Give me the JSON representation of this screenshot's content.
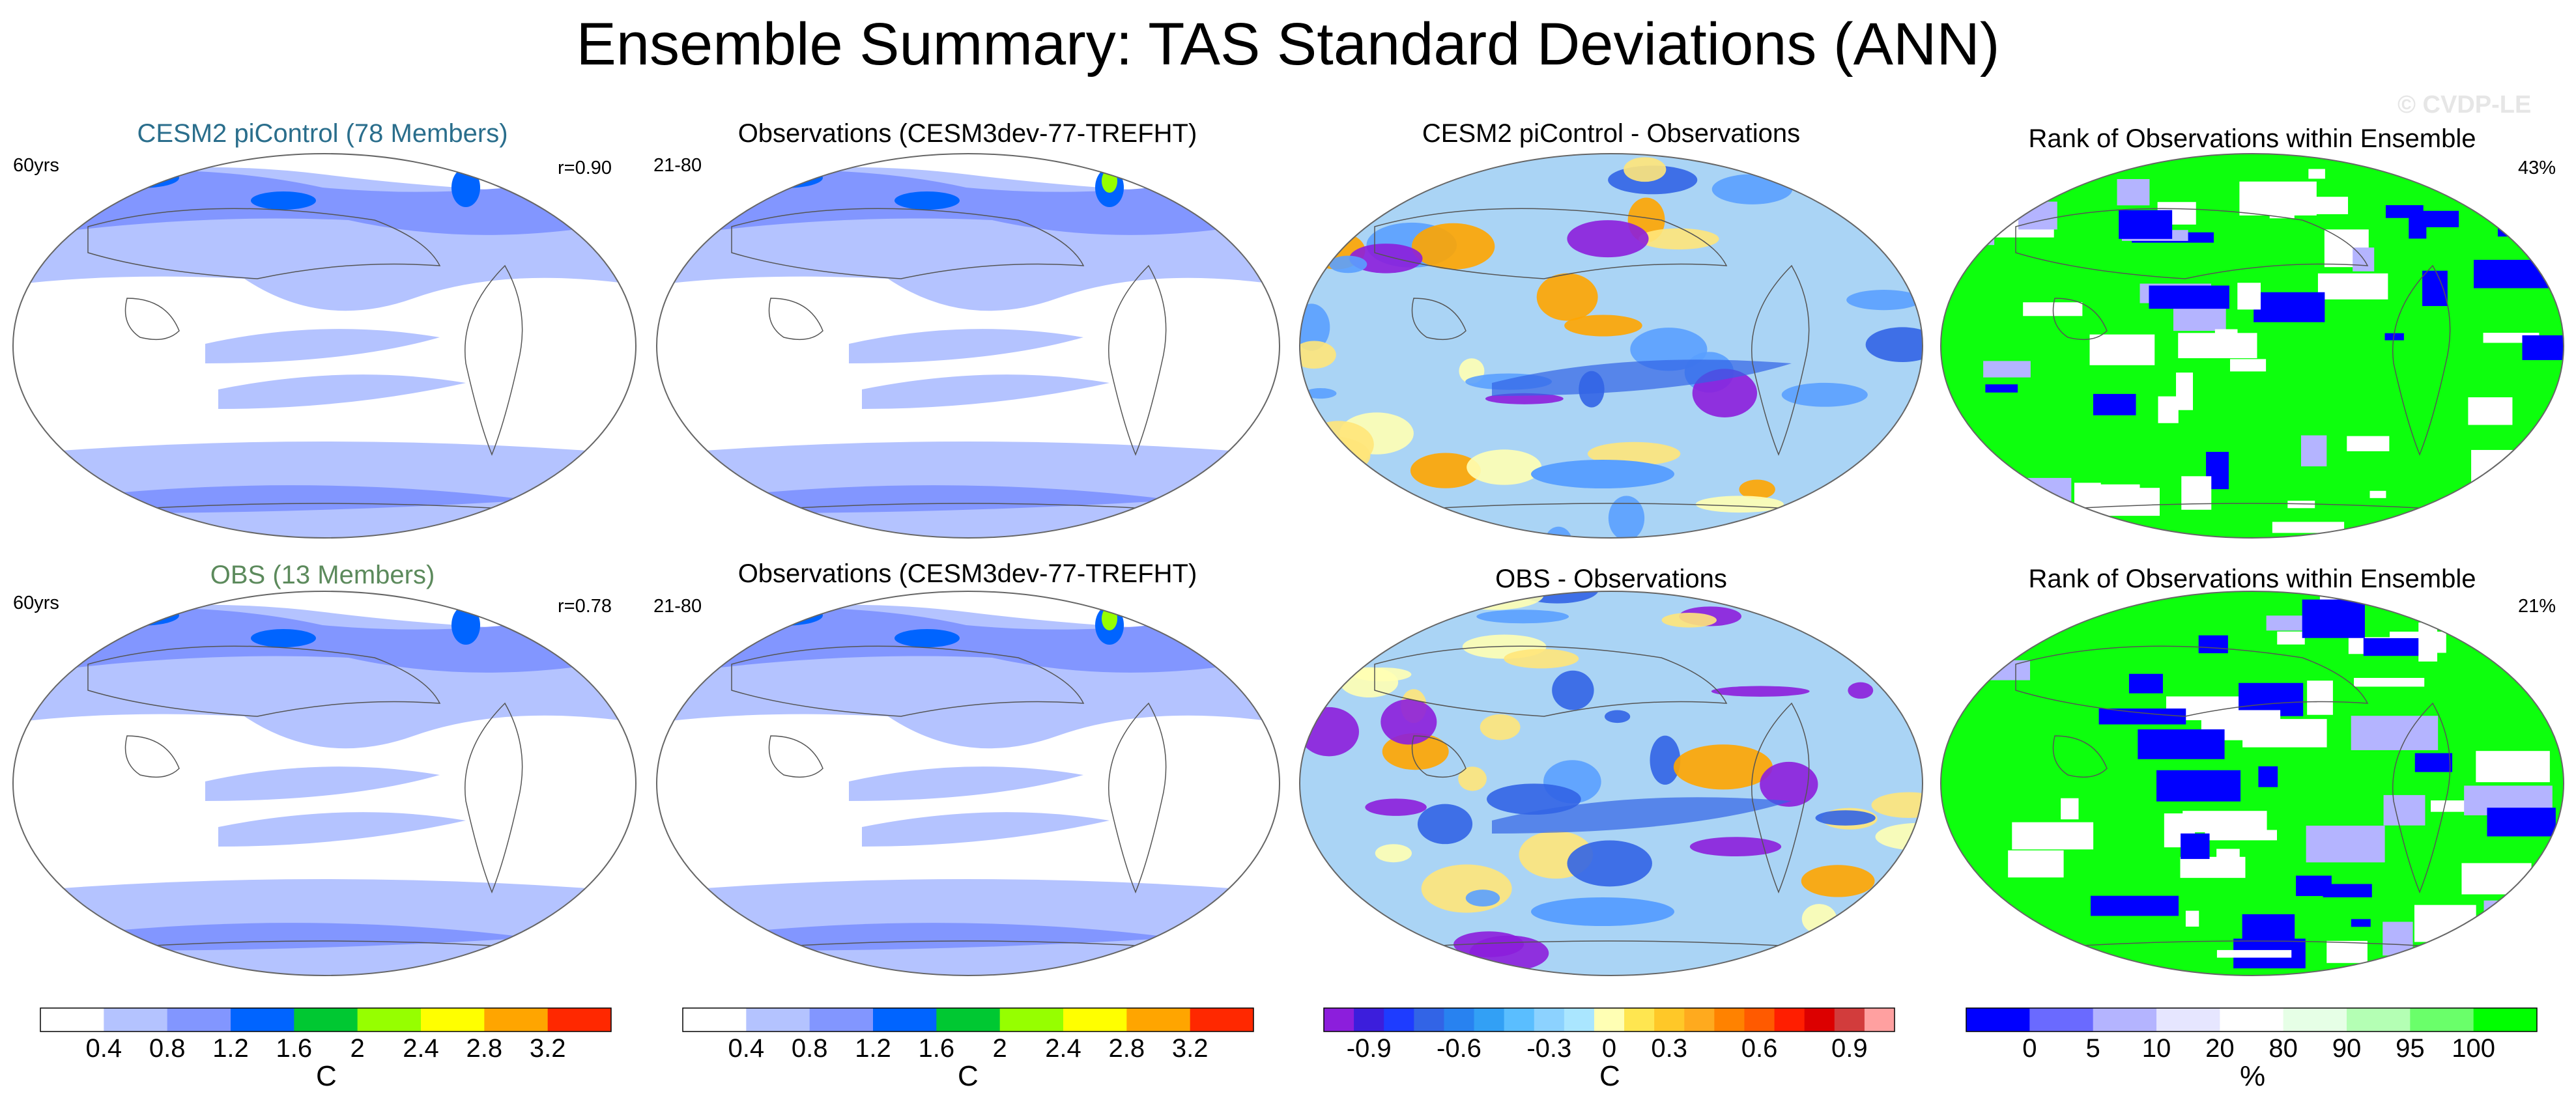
{
  "figure": {
    "title": "Ensemble Summary: TAS Standard Deviations (ANN)",
    "watermark": "© CVDP-LE"
  },
  "rows": [
    {
      "panels": [
        {
          "title": "CESM2 piControl (78 Members)",
          "left_label": "60yrs",
          "right_label": "r=0.90",
          "title_color": "#2a6e8c"
        },
        {
          "title": "Observations (CESM3dev-77-TREFHT)",
          "left_label": "21-80",
          "right_label": ""
        },
        {
          "title": "CESM2 piControl - Observations",
          "left_label": "",
          "right_label": ""
        },
        {
          "title": "Rank of Observations within Ensemble",
          "left_label": "",
          "right_label": "43%"
        }
      ]
    },
    {
      "panels": [
        {
          "title": "OBS (13 Members)",
          "left_label": "60yrs",
          "right_label": "r=0.78",
          "title_color": "#5c8a5c"
        },
        {
          "title": "Observations (CESM3dev-77-TREFHT)",
          "left_label": "21-80",
          "right_label": ""
        },
        {
          "title": "OBS - Observations",
          "left_label": "",
          "right_label": ""
        },
        {
          "title": "Rank of Observations within Ensemble",
          "left_label": "",
          "right_label": "21%"
        }
      ]
    }
  ],
  "colorbars": [
    {
      "name": "std-dev-colorbar-1",
      "unit": "C",
      "colors": [
        "#ffffff",
        "#b4c3ff",
        "#8296ff",
        "#0064ff",
        "#00c832",
        "#96ff00",
        "#ffff00",
        "#ffa500",
        "#ff2800"
      ],
      "tick_labels": [
        "0.4",
        "0.8",
        "1.2",
        "1.6",
        "2",
        "2.4",
        "2.8",
        "3.2"
      ]
    },
    {
      "name": "std-dev-colorbar-2",
      "unit": "C",
      "colors": [
        "#ffffff",
        "#b4c3ff",
        "#8296ff",
        "#0064ff",
        "#00c832",
        "#96ff00",
        "#ffff00",
        "#ffa500",
        "#ff2800"
      ],
      "tick_labels": [
        "0.4",
        "0.8",
        "1.2",
        "1.6",
        "2",
        "2.4",
        "2.8",
        "3.2"
      ]
    },
    {
      "name": "difference-colorbar",
      "unit": "C",
      "colors": [
        "#8c1edc",
        "#3c1edc",
        "#1e3cff",
        "#3264e6",
        "#2882f0",
        "#32a0f5",
        "#5abeff",
        "#8cd2ff",
        "#aae6ff",
        "#ffffb4",
        "#ffe650",
        "#ffc828",
        "#ffaa1e",
        "#ff8200",
        "#ff5a00",
        "#ff1e00",
        "#dc0000",
        "#d23c3c",
        "#ffa0a0"
      ],
      "tick_labels": [
        "-0.9",
        "-0.6",
        "-0.3",
        "0",
        "0.3",
        "0.6",
        "0.9"
      ],
      "tick_positions": [
        1.5,
        4.5,
        7.5,
        9.5,
        11.5,
        14.5,
        17.5
      ]
    },
    {
      "name": "rank-colorbar",
      "unit": "%",
      "colors": [
        "#0000ff",
        "#6a6aff",
        "#b4b4ff",
        "#e6e6ff",
        "#ffffff",
        "#e6ffe6",
        "#b4ffb4",
        "#6aff6a",
        "#00ff00"
      ],
      "tick_labels": [
        "0",
        "5",
        "10",
        "20",
        "80",
        "90",
        "95",
        "100"
      ]
    }
  ],
  "map_styles": {
    "std": {
      "base": "#ffffff",
      "blobs": [
        "#b4c3ff",
        "#8296ff",
        "#0064ff",
        "#00c832"
      ]
    },
    "diff": {
      "base": "#aad4f5",
      "blobs": [
        "#ffe67a",
        "#5aa0ff",
        "#3264e6",
        "#ffffb4",
        "#8c1edc",
        "#ffa500"
      ]
    },
    "rank": {
      "base": "#ffffff",
      "blobs": [
        "#00ff00",
        "#0000ff",
        "#b4b4ff"
      ]
    }
  }
}
